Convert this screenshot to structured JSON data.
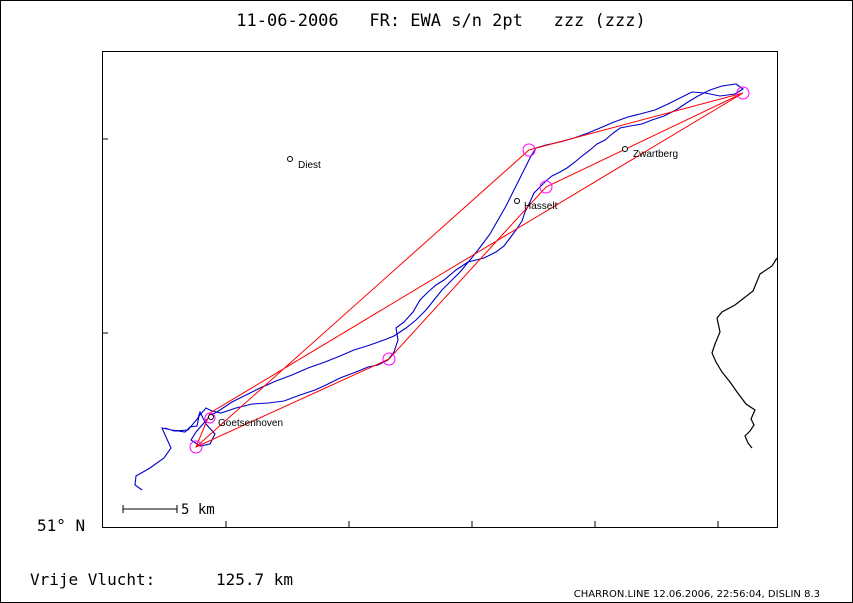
{
  "title": "11-06-2006   FR: EWA s/n 2pt   zzz (zzz)",
  "latitude_label": "51° N",
  "scale_bar": {
    "label": "5 km"
  },
  "places": [
    {
      "name": "Diest"
    },
    {
      "name": "Zwartberg"
    },
    {
      "name": "Hasselt"
    },
    {
      "name": "Goetsenhoven"
    }
  ],
  "flight": {
    "label": "Vrije Vlucht:",
    "distance": "125.7 km"
  },
  "footer": "CHARRON.LINE 12.06.2006, 22:56:04, DISLIN 8.3",
  "colors": {
    "track": "#0000cc",
    "route": "#ff0000",
    "turnpoint": "#ff00ff",
    "border": "#000000"
  }
}
